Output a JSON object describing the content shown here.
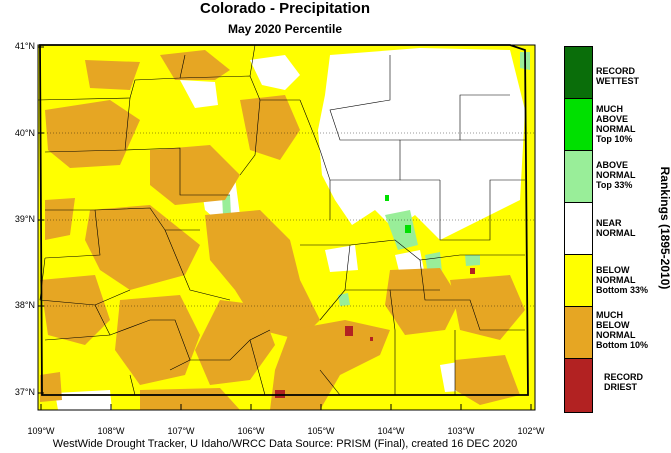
{
  "title": "Colorado - Precipitation",
  "subtitle": "May 2020 Percentile",
  "side_label": "Rankings (1895-2010)",
  "footer": "WestWide Drought Tracker, U Idaho/WRCC Data Source: PRISM (Final), created 16 DEC 2020",
  "lat_labels": [
    "41°N",
    "40°N",
    "39°N",
    "38°N",
    "37°N"
  ],
  "lon_labels": [
    "109°W",
    "108°W",
    "107°W",
    "106°W",
    "105°W",
    "104°W",
    "103°W",
    "102°W"
  ],
  "legend": [
    {
      "line1": "RECORD",
      "line2": "WETTEST",
      "line3": "",
      "line4": "",
      "color": "#0a6e0a"
    },
    {
      "line1": "MUCH",
      "line2": "ABOVE",
      "line3": "NORMAL",
      "line4": "Top 10%",
      "color": "#00e000"
    },
    {
      "line1": "ABOVE",
      "line2": "NORMAL",
      "line3": "Top 33%",
      "line4": "",
      "color": "#99ee99"
    },
    {
      "line1": "NEAR",
      "line2": "NORMAL",
      "line3": "",
      "line4": "",
      "color": "#ffffff"
    },
    {
      "line1": "BELOW",
      "line2": "NORMAL",
      "line3": "Bottom 33%",
      "line4": "",
      "color": "#ffff00"
    },
    {
      "line1": "MUCH",
      "line2": "BELOW",
      "line3": "NORMAL",
      "line4": "Bottom 10%",
      "color": "#e6a623"
    },
    {
      "line1": "RECORD",
      "line2": "DRIEST",
      "line3": "",
      "line4": "",
      "color": "#b22222"
    }
  ]
}
